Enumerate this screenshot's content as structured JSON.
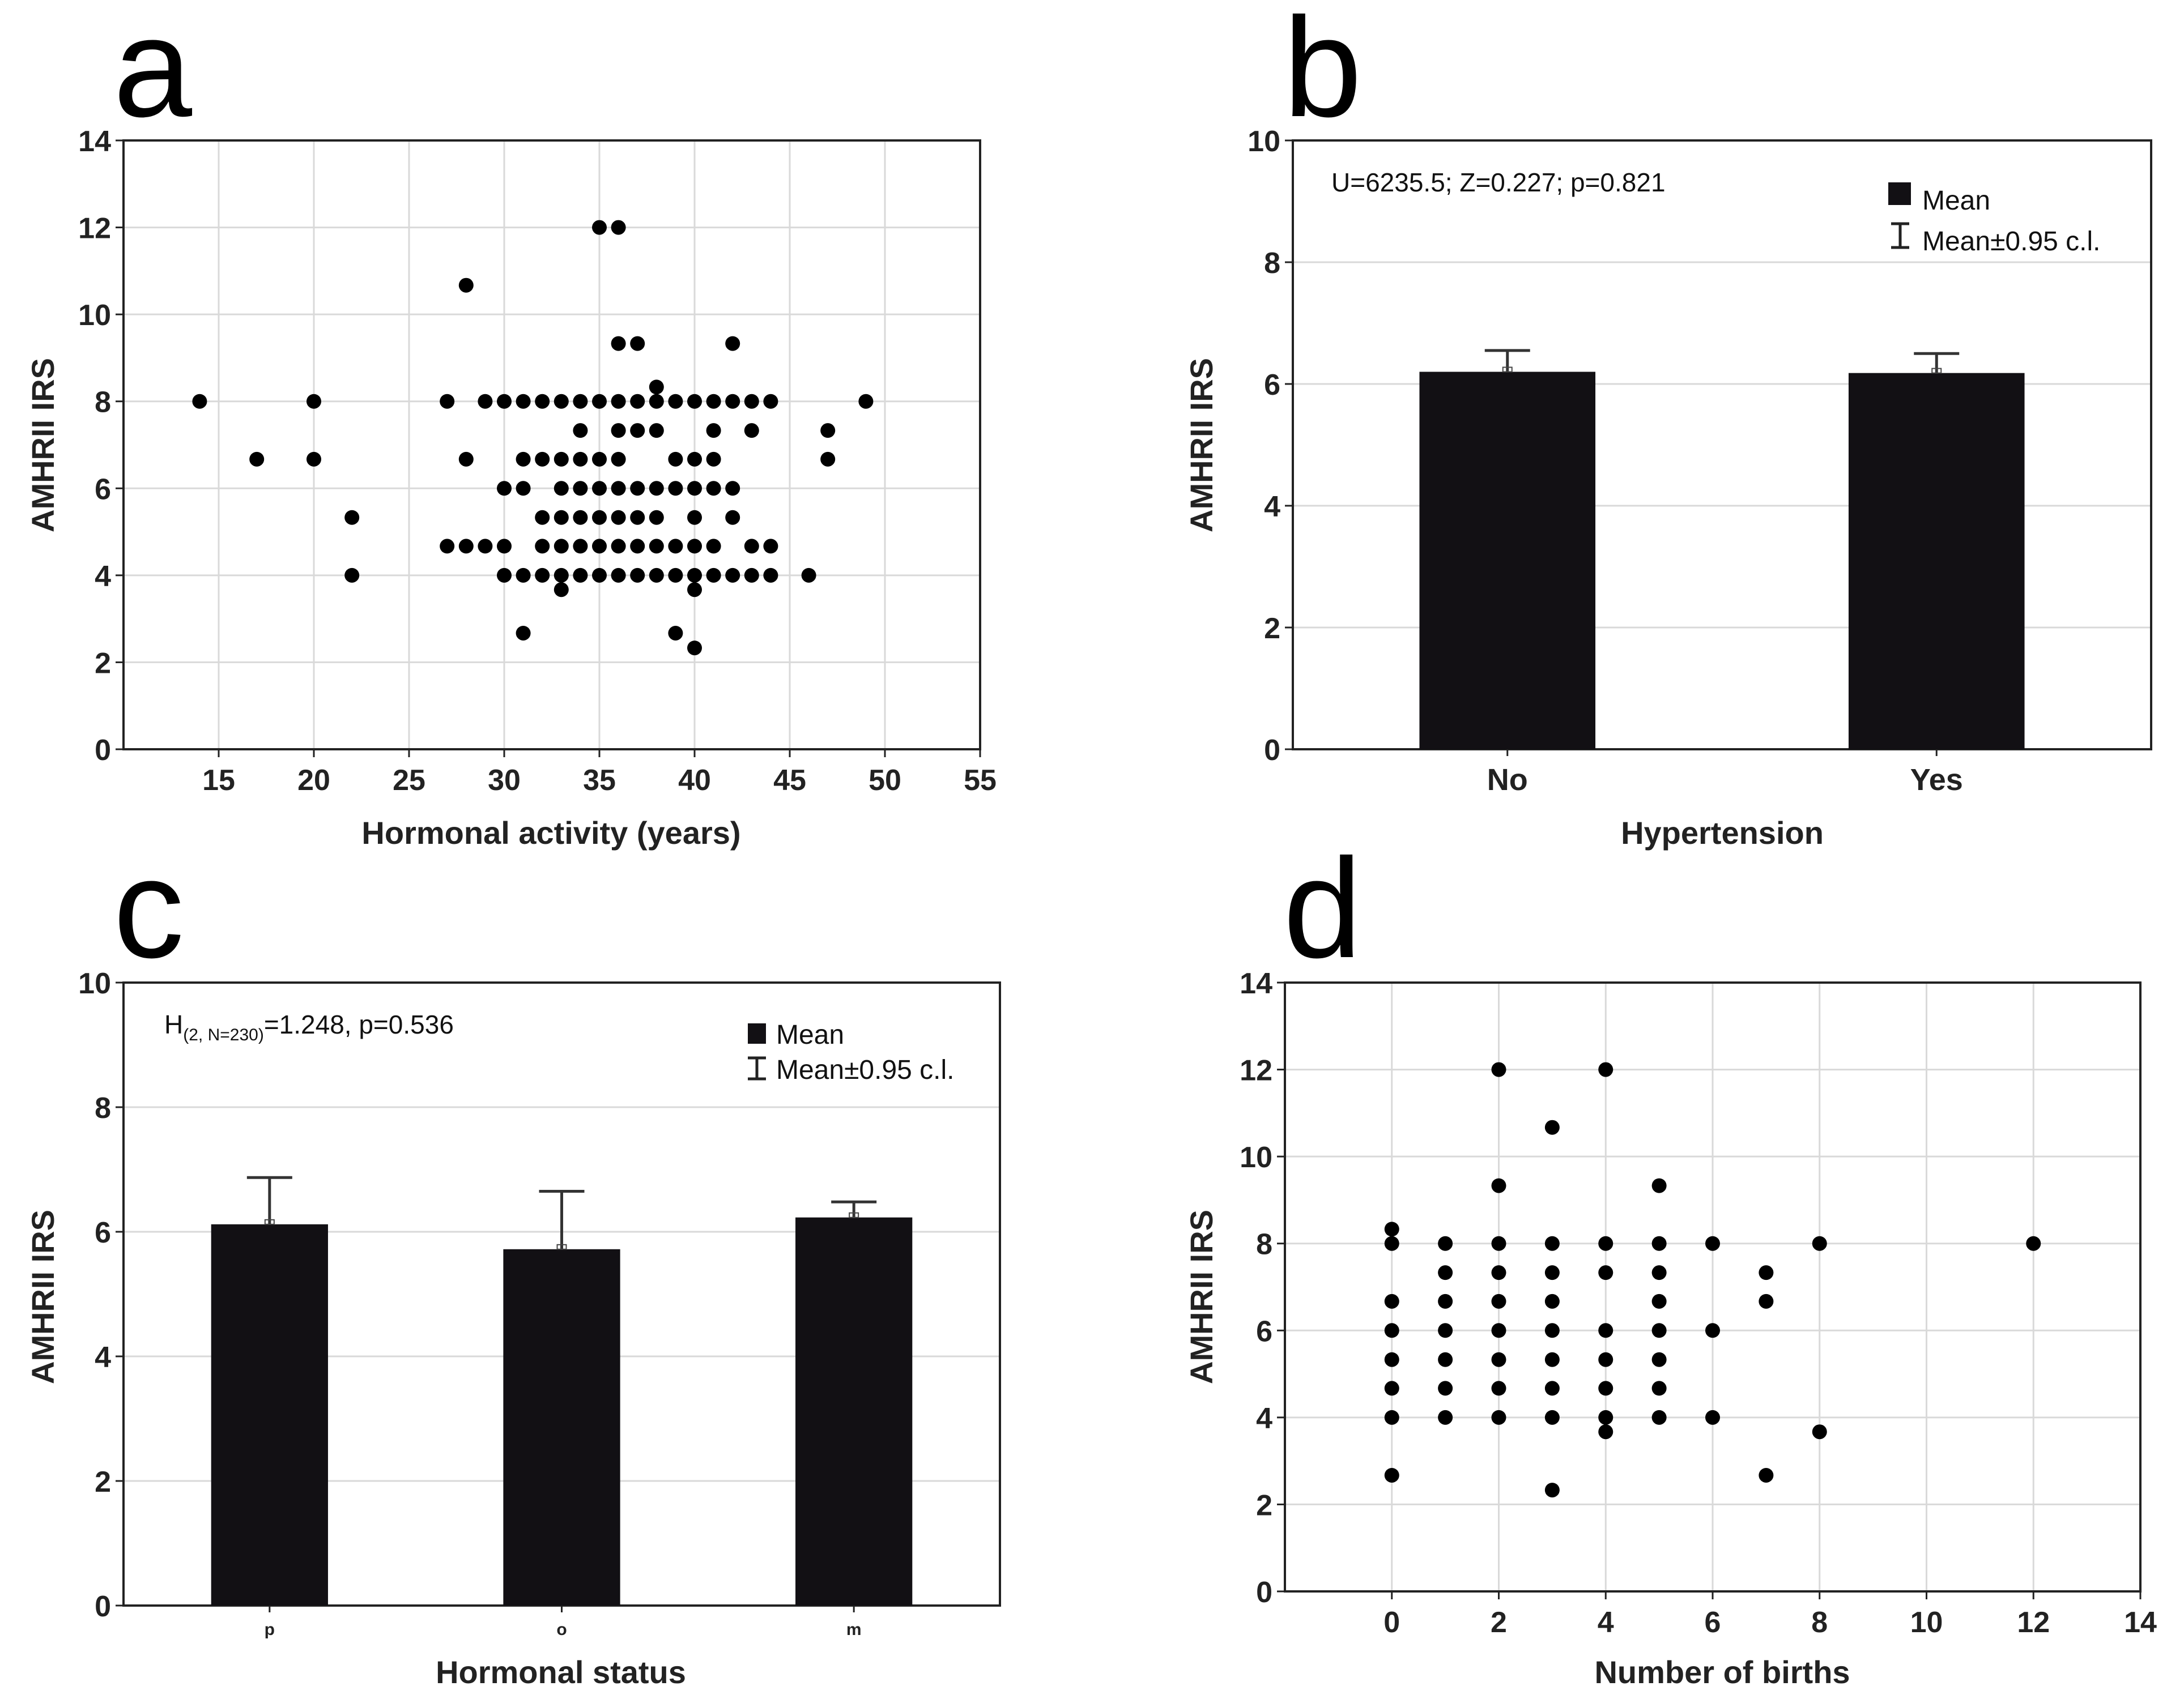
{
  "chart_data": [
    {
      "panel": "a",
      "type": "scatter",
      "xlabel": "Hormonal activity (years)",
      "ylabel": "AMHRII IRS",
      "xlim": [
        10,
        55
      ],
      "ylim": [
        0,
        14
      ],
      "xticks": [
        15,
        20,
        25,
        30,
        35,
        40,
        45,
        50,
        55
      ],
      "yticks": [
        0,
        2,
        4,
        6,
        8,
        10,
        12,
        14
      ],
      "grid": true,
      "points": [
        [
          14,
          8
        ],
        [
          17,
          6.67
        ],
        [
          20,
          8
        ],
        [
          20,
          6.67
        ],
        [
          22,
          5.33
        ],
        [
          22,
          4
        ],
        [
          27,
          8
        ],
        [
          27,
          4.67
        ],
        [
          28,
          10.67
        ],
        [
          28,
          6.67
        ],
        [
          28,
          4.67
        ],
        [
          29,
          8
        ],
        [
          29,
          4.67
        ],
        [
          30,
          8
        ],
        [
          30,
          6
        ],
        [
          30,
          4.67
        ],
        [
          30,
          4
        ],
        [
          31,
          8
        ],
        [
          31,
          6.67
        ],
        [
          31,
          6
        ],
        [
          31,
          4
        ],
        [
          31,
          2.67
        ],
        [
          32,
          8
        ],
        [
          32,
          6.67
        ],
        [
          32,
          5.33
        ],
        [
          32,
          4.67
        ],
        [
          32,
          4
        ],
        [
          33,
          8
        ],
        [
          33,
          6.67
        ],
        [
          33,
          6
        ],
        [
          33,
          5.33
        ],
        [
          33,
          4.67
        ],
        [
          33,
          4
        ],
        [
          33,
          3.67
        ],
        [
          34,
          8
        ],
        [
          34,
          7.33
        ],
        [
          34,
          6.67
        ],
        [
          34,
          6
        ],
        [
          34,
          5.33
        ],
        [
          34,
          4.67
        ],
        [
          34,
          4
        ],
        [
          35,
          12
        ],
        [
          35,
          8
        ],
        [
          35,
          6.67
        ],
        [
          35,
          6
        ],
        [
          35,
          5.33
        ],
        [
          35,
          4.67
        ],
        [
          35,
          4
        ],
        [
          36,
          12
        ],
        [
          36,
          9.33
        ],
        [
          36,
          8
        ],
        [
          36,
          7.33
        ],
        [
          36,
          6.67
        ],
        [
          36,
          6
        ],
        [
          36,
          5.33
        ],
        [
          36,
          4.67
        ],
        [
          36,
          4
        ],
        [
          37,
          9.33
        ],
        [
          37,
          8
        ],
        [
          37,
          7.33
        ],
        [
          37,
          6
        ],
        [
          37,
          5.33
        ],
        [
          37,
          4.67
        ],
        [
          37,
          4
        ],
        [
          38,
          8.33
        ],
        [
          38,
          8
        ],
        [
          38,
          7.33
        ],
        [
          38,
          6
        ],
        [
          38,
          5.33
        ],
        [
          38,
          4.67
        ],
        [
          38,
          4
        ],
        [
          39,
          8
        ],
        [
          39,
          6.67
        ],
        [
          39,
          6
        ],
        [
          39,
          4.67
        ],
        [
          39,
          4
        ],
        [
          39,
          2.67
        ],
        [
          40,
          8
        ],
        [
          40,
          6.67
        ],
        [
          40,
          6
        ],
        [
          40,
          5.33
        ],
        [
          40,
          4.67
        ],
        [
          40,
          4
        ],
        [
          40,
          3.67
        ],
        [
          40,
          2.33
        ],
        [
          41,
          8
        ],
        [
          41,
          7.33
        ],
        [
          41,
          6.67
        ],
        [
          41,
          6
        ],
        [
          41,
          4.67
        ],
        [
          41,
          4
        ],
        [
          42,
          9.33
        ],
        [
          42,
          8
        ],
        [
          42,
          6
        ],
        [
          42,
          5.33
        ],
        [
          42,
          4
        ],
        [
          43,
          8
        ],
        [
          43,
          7.33
        ],
        [
          43,
          4.67
        ],
        [
          43,
          4
        ],
        [
          44,
          8
        ],
        [
          44,
          4.67
        ],
        [
          44,
          4
        ],
        [
          46,
          4
        ],
        [
          47,
          7.33
        ],
        [
          47,
          6.67
        ],
        [
          49,
          8
        ]
      ]
    },
    {
      "panel": "b",
      "type": "bar",
      "xlabel": "Hypertension",
      "ylabel": "AMHRII IRS",
      "categories": [
        "No",
        "Yes"
      ],
      "values": [
        6.2,
        6.18
      ],
      "ci_upper": [
        6.55,
        6.5
      ],
      "ylim": [
        0,
        10
      ],
      "yticks": [
        0,
        2,
        4,
        6,
        8,
        10
      ],
      "grid": true,
      "annotation": "U=6235.5; Z=0.227; p=0.821",
      "legend": {
        "placement": "top-right",
        "mean_label": "Mean",
        "ci_label": "Mean±0.95 c.l."
      }
    },
    {
      "panel": "c",
      "type": "bar",
      "xlabel": "Hormonal status",
      "ylabel": "AMHRII IRS",
      "categories": [
        "p",
        "o",
        "m"
      ],
      "values": [
        6.12,
        5.72,
        6.23
      ],
      "ci_upper": [
        6.87,
        6.65,
        6.48
      ],
      "ylim": [
        0,
        10
      ],
      "yticks": [
        0,
        2,
        4,
        6,
        8,
        10
      ],
      "grid": true,
      "annotation": {
        "main": "H",
        "sub": "(2, N=230)",
        "rest": "=1.248, p=0.536"
      },
      "legend": {
        "placement": "top-right",
        "mean_label": "Mean",
        "ci_label": "Mean±0.95 c.l."
      }
    },
    {
      "panel": "d",
      "type": "scatter",
      "xlabel": "Number of births",
      "ylabel": "AMHRII IRS",
      "xlim": [
        -2,
        14
      ],
      "ylim": [
        0,
        14
      ],
      "xticks": [
        0,
        2,
        4,
        6,
        8,
        10,
        12,
        14
      ],
      "yticks": [
        0,
        2,
        4,
        6,
        8,
        10,
        12,
        14
      ],
      "grid": true,
      "points": [
        [
          0,
          8.33
        ],
        [
          0,
          8
        ],
        [
          0,
          6.67
        ],
        [
          0,
          6
        ],
        [
          0,
          5.33
        ],
        [
          0,
          4.67
        ],
        [
          0,
          4
        ],
        [
          0,
          2.67
        ],
        [
          1,
          8
        ],
        [
          1,
          7.33
        ],
        [
          1,
          6.67
        ],
        [
          1,
          6
        ],
        [
          1,
          5.33
        ],
        [
          1,
          4.67
        ],
        [
          1,
          4
        ],
        [
          2,
          12
        ],
        [
          2,
          9.33
        ],
        [
          2,
          8
        ],
        [
          2,
          7.33
        ],
        [
          2,
          6.67
        ],
        [
          2,
          6
        ],
        [
          2,
          5.33
        ],
        [
          2,
          4.67
        ],
        [
          2,
          4
        ],
        [
          3,
          10.67
        ],
        [
          3,
          8
        ],
        [
          3,
          7.33
        ],
        [
          3,
          6.67
        ],
        [
          3,
          6
        ],
        [
          3,
          5.33
        ],
        [
          3,
          4.67
        ],
        [
          3,
          4
        ],
        [
          3,
          2.33
        ],
        [
          4,
          12
        ],
        [
          4,
          8
        ],
        [
          4,
          7.33
        ],
        [
          4,
          6
        ],
        [
          4,
          5.33
        ],
        [
          4,
          4.67
        ],
        [
          4,
          4
        ],
        [
          4,
          3.67
        ],
        [
          5,
          9.33
        ],
        [
          5,
          8
        ],
        [
          5,
          7.33
        ],
        [
          5,
          6.67
        ],
        [
          5,
          6
        ],
        [
          5,
          5.33
        ],
        [
          5,
          4.67
        ],
        [
          5,
          4
        ],
        [
          6,
          8
        ],
        [
          6,
          6
        ],
        [
          6,
          4
        ],
        [
          7,
          7.33
        ],
        [
          7,
          6.67
        ],
        [
          7,
          2.67
        ],
        [
          8,
          8
        ],
        [
          8,
          3.67
        ],
        [
          12,
          8
        ]
      ]
    }
  ],
  "panel_letters": [
    "a",
    "b",
    "c",
    "d"
  ],
  "colors": {
    "marker": "#000000",
    "bar": "#121014",
    "grid": "#d9d9d9",
    "frame": "#222222"
  }
}
